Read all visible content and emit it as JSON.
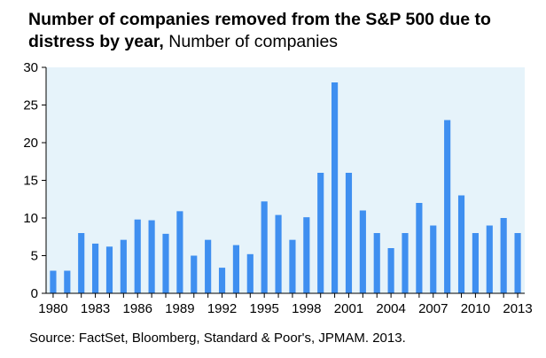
{
  "chart_data": {
    "type": "bar",
    "title": "Number of companies removed from the S&P 500 due to distress by year,",
    "subtitle": "Number of companies",
    "source": "Source: FactSet, Bloomberg, Standard & Poor's, JPMAM. 2013.",
    "categories": [
      "1980",
      "1981",
      "1982",
      "1983",
      "1984",
      "1985",
      "1986",
      "1987",
      "1988",
      "1989",
      "1990",
      "1991",
      "1992",
      "1993",
      "1994",
      "1995",
      "1996",
      "1997",
      "1998",
      "1999",
      "2000",
      "2001",
      "2002",
      "2003",
      "2004",
      "2005",
      "2006",
      "2007",
      "2008",
      "2009",
      "2010",
      "2011",
      "2012",
      "2013"
    ],
    "values": [
      3,
      3,
      8,
      6.6,
      6.2,
      7.1,
      9.8,
      9.7,
      7.9,
      10.9,
      5,
      7.1,
      3.4,
      6.4,
      5.2,
      12.2,
      10.4,
      7.1,
      10.1,
      16,
      28,
      16,
      11,
      8,
      6,
      8,
      12,
      9,
      23,
      13,
      8,
      9,
      10,
      8
    ],
    "x_tick_labels": [
      "1980",
      "1983",
      "1986",
      "1989",
      "1992",
      "1995",
      "1998",
      "2001",
      "2004",
      "2007",
      "2010",
      "2013"
    ],
    "y_ticks": [
      0,
      5,
      10,
      15,
      20,
      25,
      30
    ],
    "ylim": [
      0,
      30
    ],
    "xlabel": "",
    "ylabel": "",
    "grid": false,
    "plot_background": "#e6f3fa",
    "bar_color": "#3f8ff0"
  }
}
